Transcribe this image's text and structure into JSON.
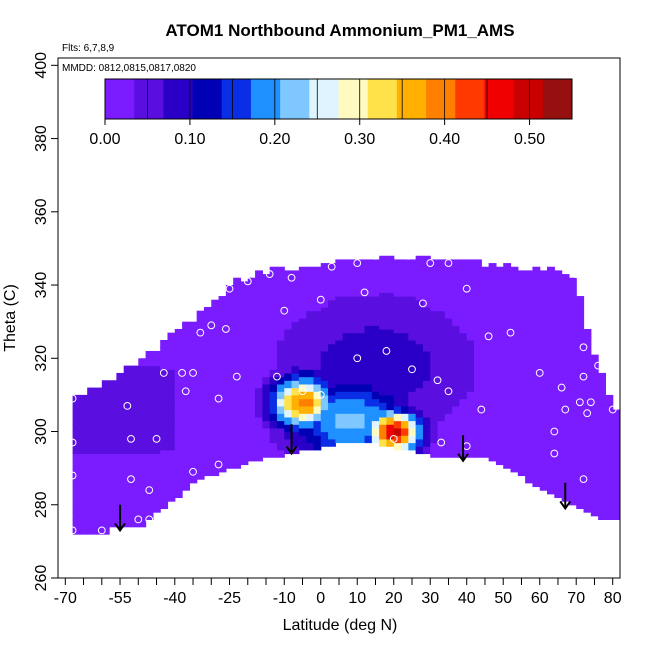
{
  "chart_data": {
    "type": "heatmap",
    "title": "ATOM1 Northbound Ammonium_PM1_AMS",
    "flights_label": "Flts: 6,7,8,9",
    "dates_label": "MMDD: 0812,0815,0817,0820",
    "xlabel": "Latitude (deg N)",
    "ylabel": "Theta (C)",
    "xlim": [
      -72,
      82
    ],
    "ylim": [
      260,
      402
    ],
    "x_ticks": [
      -70,
      -55,
      -40,
      -25,
      -10,
      0,
      10,
      20,
      30,
      40,
      50,
      60,
      70,
      80
    ],
    "x_minor_ticks": [
      -65,
      -60,
      -50,
      -45,
      -35,
      -30,
      -20,
      -15,
      -5,
      5,
      15,
      25,
      35,
      45,
      55,
      65,
      75
    ],
    "y_ticks": [
      260,
      280,
      300,
      320,
      340,
      360,
      380,
      400
    ],
    "colorbar": {
      "min": 0.0,
      "max": 0.55,
      "step": 0.05,
      "ticks": [
        0.0,
        0.1,
        0.2,
        0.3,
        0.4,
        0.5
      ],
      "tick_labels": [
        "0.00",
        "0.10",
        "0.20",
        "0.30",
        "0.40",
        "0.50"
      ],
      "colors": [
        "#7a1cff",
        "#5a0ee0",
        "#2a00c8",
        "#0000b4",
        "#0a2ee6",
        "#1e90ff",
        "#7ec8ff",
        "#e0f4ff",
        "#fffbc0",
        "#ffe14a",
        "#ffb000",
        "#ff8000",
        "#ff3a00",
        "#f00000",
        "#c80000",
        "#961010"
      ]
    },
    "data_region_lower_boundary": [
      [
        -68,
        272
      ],
      [
        -60,
        272
      ],
      [
        -57,
        274
      ],
      [
        -50,
        274
      ],
      [
        -40,
        282
      ],
      [
        -34,
        287
      ],
      [
        -28,
        289
      ],
      [
        -20,
        292
      ],
      [
        -10,
        294
      ],
      [
        0,
        296
      ],
      [
        10,
        298
      ],
      [
        20,
        296
      ],
      [
        30,
        294
      ],
      [
        40,
        293
      ],
      [
        45,
        293
      ],
      [
        55,
        288
      ],
      [
        65,
        282
      ],
      [
        73,
        278
      ],
      [
        80,
        276
      ]
    ],
    "data_region_upper_boundary": [
      [
        -68,
        308
      ],
      [
        -60,
        312
      ],
      [
        -50,
        318
      ],
      [
        -40,
        326
      ],
      [
        -30,
        334
      ],
      [
        -24,
        340
      ],
      [
        -15,
        343
      ],
      [
        -5,
        344
      ],
      [
        5,
        346
      ],
      [
        15,
        347
      ],
      [
        25,
        347
      ],
      [
        35,
        346
      ],
      [
        45,
        345
      ],
      [
        55,
        344
      ],
      [
        65,
        343
      ],
      [
        70,
        340
      ],
      [
        73,
        328
      ],
      [
        75,
        320
      ],
      [
        78,
        312
      ],
      [
        80,
        306
      ]
    ],
    "features": [
      {
        "label": "high-Ammonium plume W",
        "lat": -5,
        "theta": 308,
        "lat_sigma": 6,
        "theta_sigma": 5,
        "value": 0.4
      },
      {
        "label": "high-Ammonium plume E",
        "lat": 20,
        "theta": 300,
        "lat_sigma": 5,
        "theta_sigma": 4,
        "value": 0.5
      },
      {
        "label": "moderate band",
        "lat": 8,
        "theta": 303,
        "lat_sigma": 12,
        "theta_sigma": 8,
        "value": 0.22
      },
      {
        "label": "dark blue core",
        "lat": 15,
        "theta": 318,
        "lat_sigma": 20,
        "theta_sigma": 14,
        "value": 0.09
      }
    ],
    "sample_points": [
      [
        -68,
        309
      ],
      [
        -68,
        297
      ],
      [
        -68,
        288
      ],
      [
        -68,
        273
      ],
      [
        -60,
        273
      ],
      [
        -53,
        307
      ],
      [
        -52,
        298
      ],
      [
        -52,
        287
      ],
      [
        -50,
        276
      ],
      [
        -47,
        284
      ],
      [
        -47,
        276
      ],
      [
        -45,
        298
      ],
      [
        -43,
        316
      ],
      [
        -38,
        316
      ],
      [
        -37,
        311
      ],
      [
        -35,
        316
      ],
      [
        -35,
        289
      ],
      [
        -33,
        327
      ],
      [
        -30,
        329
      ],
      [
        -28,
        309
      ],
      [
        -28,
        291
      ],
      [
        -26,
        328
      ],
      [
        -25,
        339
      ],
      [
        -23,
        315
      ],
      [
        -20,
        341
      ],
      [
        -14,
        343
      ],
      [
        -12,
        315
      ],
      [
        -10,
        333
      ],
      [
        -8,
        342
      ],
      [
        -5,
        311
      ],
      [
        0,
        336
      ],
      [
        0,
        310
      ],
      [
        3,
        345
      ],
      [
        10,
        320
      ],
      [
        10,
        346
      ],
      [
        12,
        338
      ],
      [
        15,
        348
      ],
      [
        18,
        322
      ],
      [
        20,
        298
      ],
      [
        24,
        348
      ],
      [
        25,
        317
      ],
      [
        28,
        335
      ],
      [
        30,
        346
      ],
      [
        32,
        314
      ],
      [
        33,
        297
      ],
      [
        35,
        346
      ],
      [
        35,
        311
      ],
      [
        40,
        339
      ],
      [
        40,
        296
      ],
      [
        44,
        306
      ],
      [
        46,
        326
      ],
      [
        52,
        327
      ],
      [
        60,
        316
      ],
      [
        64,
        300
      ],
      [
        64,
        294
      ],
      [
        66,
        312
      ],
      [
        67,
        306
      ],
      [
        70,
        343
      ],
      [
        71,
        308
      ],
      [
        72,
        315
      ],
      [
        72,
        323
      ],
      [
        72,
        287
      ],
      [
        73,
        305
      ],
      [
        74,
        308
      ],
      [
        76,
        318
      ],
      [
        74,
        275
      ],
      [
        80,
        306
      ]
    ],
    "arrows": [
      {
        "lat": -55,
        "theta_top": 280,
        "theta_tip": 273
      },
      {
        "lat": -8,
        "theta_top": 302,
        "theta_tip": 294
      },
      {
        "lat": 39,
        "theta_top": 299,
        "theta_tip": 292
      },
      {
        "lat": 67,
        "theta_top": 286,
        "theta_tip": 279
      }
    ]
  }
}
